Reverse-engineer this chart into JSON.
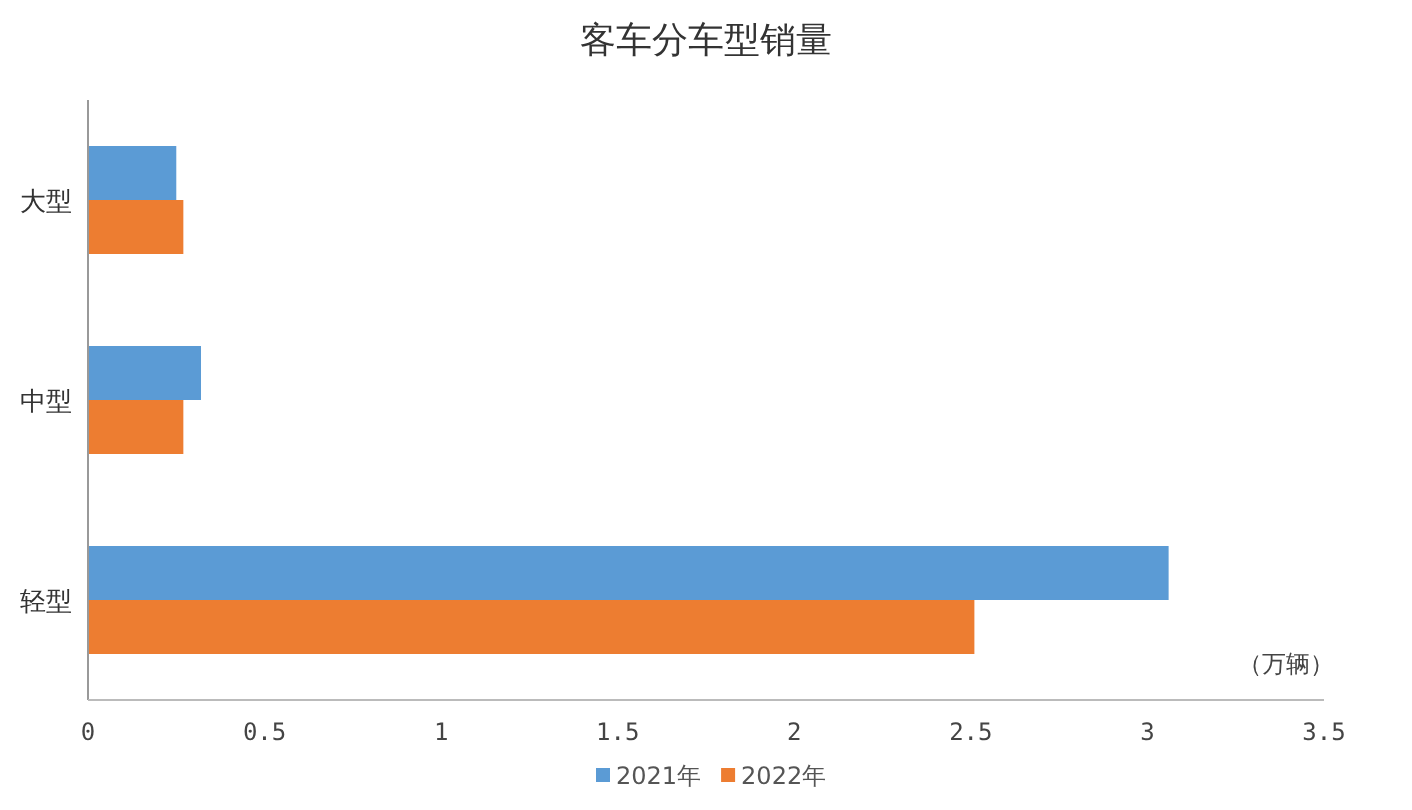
{
  "chart_data": {
    "type": "bar",
    "orientation": "horizontal",
    "title": "客车分车型销量",
    "xlabel": "（万辆）",
    "categories": [
      "大型",
      "中型",
      "轻型"
    ],
    "series": [
      {
        "name": "2021年",
        "color": "#5b9bd5",
        "values": [
          0.25,
          0.32,
          3.06
        ]
      },
      {
        "name": "2022年",
        "color": "#ed7d31",
        "values": [
          0.27,
          0.27,
          2.51
        ]
      }
    ],
    "xlim": [
      0,
      3.5
    ],
    "xticks": [
      0,
      0.5,
      1,
      1.5,
      2,
      2.5,
      3,
      3.5
    ],
    "grid": false,
    "legend": "bottom"
  }
}
